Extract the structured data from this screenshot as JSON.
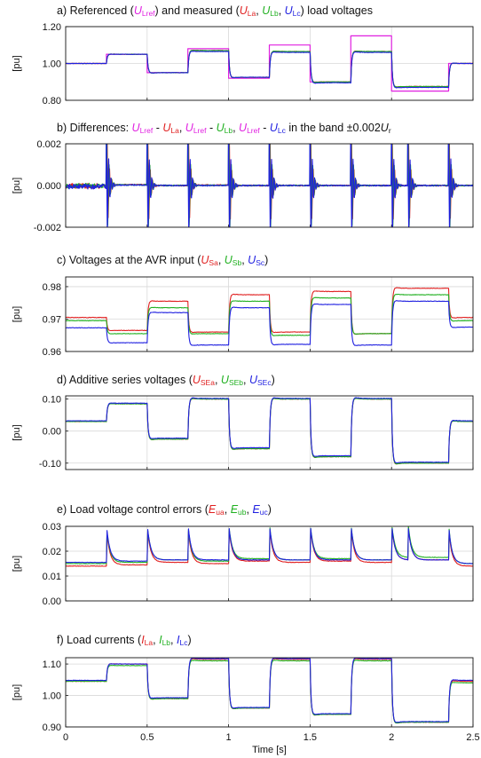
{
  "figure": {
    "x_axis_label": "Time [s]",
    "x_tick_labels": [
      "0",
      "0.5",
      "1",
      "1.5",
      "2",
      "2.5"
    ],
    "xlim": [
      0,
      2.5
    ],
    "step_times": [
      0.25,
      0.5,
      0.75,
      1.0,
      1.25,
      1.5,
      1.75,
      2.0,
      2.1,
      2.35
    ]
  },
  "panels": [
    {
      "id": "a",
      "title_parts": [
        {
          "t": "a) Referenced ("
        },
        {
          "t": "U",
          "i": true,
          "c": "#e020e0"
        },
        {
          "t": "Lref",
          "sub": true,
          "c": "#e020e0"
        },
        {
          "t": ") and measured ("
        },
        {
          "t": "U",
          "i": true,
          "c": "#e02020"
        },
        {
          "t": "La",
          "sub": true,
          "c": "#e02020"
        },
        {
          "t": ", "
        },
        {
          "t": "U",
          "i": true,
          "c": "#20b020"
        },
        {
          "t": "Lb",
          "sub": true,
          "c": "#20b020"
        },
        {
          "t": ", "
        },
        {
          "t": "U",
          "i": true,
          "c": "#2020e0"
        },
        {
          "t": "Lc",
          "sub": true,
          "c": "#2020e0"
        },
        {
          "t": ") load voltages"
        }
      ],
      "ylabel": "[pu]",
      "ylim": [
        0.8,
        1.2
      ],
      "yticks": [
        0.8,
        1.0,
        1.2
      ],
      "ytick_labels": [
        "0.80",
        "1.00",
        "1.20"
      ]
    },
    {
      "id": "b",
      "title_parts": [
        {
          "t": "b) Differences: "
        },
        {
          "t": "U",
          "i": true,
          "c": "#e020e0"
        },
        {
          "t": "Lref",
          "sub": true,
          "c": "#e020e0"
        },
        {
          "t": " - "
        },
        {
          "t": "U",
          "i": true,
          "c": "#e02020"
        },
        {
          "t": "La",
          "sub": true,
          "c": "#e02020"
        },
        {
          "t": ", "
        },
        {
          "t": "U",
          "i": true,
          "c": "#e020e0"
        },
        {
          "t": "Lref",
          "sub": true,
          "c": "#e020e0"
        },
        {
          "t": " - "
        },
        {
          "t": "U",
          "i": true,
          "c": "#20b020"
        },
        {
          "t": "Lb",
          "sub": true,
          "c": "#20b020"
        },
        {
          "t": ", "
        },
        {
          "t": "U",
          "i": true,
          "c": "#e020e0"
        },
        {
          "t": "Lref",
          "sub": true,
          "c": "#e020e0"
        },
        {
          "t": " - "
        },
        {
          "t": "U",
          "i": true,
          "c": "#2020e0"
        },
        {
          "t": "Lc",
          "sub": true,
          "c": "#2020e0"
        },
        {
          "t": " in the band ±0.002"
        },
        {
          "t": "U",
          "i": true
        },
        {
          "t": "r",
          "sub": true
        }
      ],
      "ylabel": "[pu]",
      "ylim": [
        -0.002,
        0.002
      ],
      "yticks": [
        -0.002,
        0.0,
        0.002
      ],
      "ytick_labels": [
        "-0.002",
        "0.000",
        "0.002"
      ]
    },
    {
      "id": "c",
      "title_parts": [
        {
          "t": "c) Voltages at the AVR input ("
        },
        {
          "t": "U",
          "i": true,
          "c": "#e02020"
        },
        {
          "t": "Sa",
          "sub": true,
          "c": "#e02020"
        },
        {
          "t": ", "
        },
        {
          "t": "U",
          "i": true,
          "c": "#20b020"
        },
        {
          "t": "Sb",
          "sub": true,
          "c": "#20b020"
        },
        {
          "t": ", "
        },
        {
          "t": "U",
          "i": true,
          "c": "#2020e0"
        },
        {
          "t": "Sc",
          "sub": true,
          "c": "#2020e0"
        },
        {
          "t": ")"
        }
      ],
      "ylabel": "[pu]",
      "ylim": [
        0.96,
        0.983
      ],
      "yticks": [
        0.96,
        0.97,
        0.98
      ],
      "ytick_labels": [
        "0.96",
        "0.97",
        "0.98"
      ]
    },
    {
      "id": "d",
      "title_parts": [
        {
          "t": "d) Additive series voltages ("
        },
        {
          "t": "U",
          "i": true,
          "c": "#e02020"
        },
        {
          "t": "SEa",
          "sub": true,
          "c": "#e02020"
        },
        {
          "t": ", "
        },
        {
          "t": "U",
          "i": true,
          "c": "#20b020"
        },
        {
          "t": "SEb",
          "sub": true,
          "c": "#20b020"
        },
        {
          "t": ", "
        },
        {
          "t": "U",
          "i": true,
          "c": "#2020e0"
        },
        {
          "t": "SEc",
          "sub": true,
          "c": "#2020e0"
        },
        {
          "t": ")"
        }
      ],
      "ylabel": "[pu]",
      "ylim": [
        -0.12,
        0.11
      ],
      "yticks": [
        -0.1,
        0.0,
        0.1
      ],
      "ytick_labels": [
        "-0.10",
        "0.00",
        "0.10"
      ]
    },
    {
      "id": "e",
      "title_parts": [
        {
          "t": "e) Load voltage control errors ("
        },
        {
          "t": "E",
          "i": true,
          "c": "#e02020"
        },
        {
          "t": "ua",
          "sub": true,
          "c": "#e02020"
        },
        {
          "t": ", "
        },
        {
          "t": "E",
          "i": true,
          "c": "#20b020"
        },
        {
          "t": "ub",
          "sub": true,
          "c": "#20b020"
        },
        {
          "t": ", "
        },
        {
          "t": "E",
          "i": true,
          "c": "#2020e0"
        },
        {
          "t": "uc",
          "sub": true,
          "c": "#2020e0"
        },
        {
          "t": ")"
        }
      ],
      "ylabel": "[pu]",
      "ylim": [
        0.0,
        0.03
      ],
      "yticks": [
        0.0,
        0.01,
        0.02,
        0.03
      ],
      "ytick_labels": [
        "0.00",
        "0.01",
        "0.02",
        "0.03"
      ]
    },
    {
      "id": "f",
      "title_parts": [
        {
          "t": "f) Load currents ("
        },
        {
          "t": "I",
          "i": true,
          "c": "#e02020"
        },
        {
          "t": "La",
          "sub": true,
          "c": "#e02020"
        },
        {
          "t": ", "
        },
        {
          "t": "I",
          "i": true,
          "c": "#20b020"
        },
        {
          "t": "Lb",
          "sub": true,
          "c": "#20b020"
        },
        {
          "t": ", "
        },
        {
          "t": "I",
          "i": true,
          "c": "#2020e0"
        },
        {
          "t": "Lc",
          "sub": true,
          "c": "#2020e0"
        },
        {
          "t": ")"
        }
      ],
      "ylabel": "[pu]",
      "ylim": [
        0.9,
        1.12
      ],
      "yticks": [
        0.9,
        1.0,
        1.1
      ],
      "ytick_labels": [
        "0.90",
        "1.00",
        "1.10"
      ]
    }
  ],
  "chart_data": [
    {
      "type": "line",
      "panel": "a",
      "x_breakpoints": [
        0,
        0.25,
        0.5,
        0.75,
        1.0,
        1.25,
        1.5,
        1.75,
        2.0,
        2.1,
        2.35,
        2.5
      ],
      "series": [
        {
          "color": "#e020e0",
          "style": "step",
          "levels": [
            1.0,
            1.05,
            0.95,
            1.08,
            0.92,
            1.1,
            0.9,
            1.15,
            0.85,
            0.85,
            1.0
          ]
        },
        {
          "color": "#e02020",
          "style": "tracking",
          "levels": [
            1.0,
            1.05,
            0.95,
            1.07,
            0.925,
            1.065,
            0.9,
            1.065,
            0.875,
            0.875,
            1.0
          ]
        },
        {
          "color": "#20b020",
          "style": "tracking",
          "levels": [
            1.0,
            1.05,
            0.95,
            1.07,
            0.925,
            1.065,
            0.9,
            1.065,
            0.875,
            0.875,
            1.0
          ]
        },
        {
          "color": "#2020e0",
          "style": "tracking",
          "levels": [
            1.0,
            1.05,
            0.95,
            1.065,
            0.925,
            1.06,
            0.895,
            1.06,
            0.87,
            0.87,
            1.0
          ]
        }
      ]
    },
    {
      "type": "line",
      "panel": "b",
      "band": 0.002,
      "x_breakpoints": [
        0,
        0.25,
        0.5,
        0.75,
        1.0,
        1.25,
        1.5,
        1.75,
        2.0,
        2.1,
        2.35,
        2.5
      ],
      "series": [
        {
          "color": "#e02020",
          "levels": [
            -2e-05,
            4e-05,
            0.0,
            2e-05,
            0.0,
            0.0,
            0.0,
            0.0,
            0.0,
            0.0,
            0.0
          ]
        },
        {
          "color": "#20b020",
          "levels": [
            -1e-05,
            3e-05,
            0.0,
            1e-05,
            0.0,
            0.0,
            0.0,
            0.0,
            0.0,
            0.0,
            0.0
          ]
        },
        {
          "color": "#2020e0",
          "levels": [
            -5e-05,
            2e-05,
            0.0,
            0.0,
            0.0,
            0.0,
            0.0,
            0.0,
            0.0,
            0.0,
            0.0
          ]
        }
      ]
    },
    {
      "type": "line",
      "panel": "c",
      "x_breakpoints": [
        0,
        0.25,
        0.5,
        0.75,
        1.0,
        1.25,
        1.5,
        1.75,
        2.0,
        2.1,
        2.35,
        2.5
      ],
      "series": [
        {
          "color": "#e02020",
          "levels": [
            0.9705,
            0.9665,
            0.9755,
            0.966,
            0.9775,
            0.966,
            0.9785,
            0.9655,
            0.9795,
            0.9795,
            0.9705
          ]
        },
        {
          "color": "#20b020",
          "levels": [
            0.9695,
            0.9655,
            0.9735,
            0.9655,
            0.9755,
            0.965,
            0.9765,
            0.9655,
            0.9775,
            0.9775,
            0.9695
          ]
        },
        {
          "color": "#2020e0",
          "levels": [
            0.9673,
            0.9627,
            0.972,
            0.962,
            0.9735,
            0.9622,
            0.9745,
            0.962,
            0.9755,
            0.9755,
            0.9675
          ]
        }
      ]
    },
    {
      "type": "line",
      "panel": "d",
      "x_breakpoints": [
        0,
        0.25,
        0.5,
        0.75,
        1.0,
        1.25,
        1.5,
        1.75,
        2.0,
        2.1,
        2.35,
        2.5
      ],
      "series": [
        {
          "color": "#e02020",
          "levels": [
            0.03,
            0.085,
            -0.025,
            0.1,
            -0.055,
            0.1,
            -0.08,
            0.1,
            -0.1,
            -0.1,
            0.03
          ]
        },
        {
          "color": "#20b020",
          "levels": [
            0.03,
            0.085,
            -0.025,
            0.1,
            -0.055,
            0.1,
            -0.08,
            0.1,
            -0.1,
            -0.1,
            0.03
          ]
        },
        {
          "color": "#2020e0",
          "levels": [
            0.032,
            0.087,
            -0.022,
            0.102,
            -0.052,
            0.102,
            -0.077,
            0.102,
            -0.097,
            -0.097,
            0.032
          ]
        }
      ]
    },
    {
      "type": "line",
      "panel": "e",
      "x_breakpoints": [
        0,
        0.25,
        0.5,
        0.75,
        1.0,
        1.25,
        1.5,
        1.75,
        2.0,
        2.1,
        2.35,
        2.5
      ],
      "series": [
        {
          "color": "#e02020",
          "levels": [
            0.014,
            0.0145,
            0.0155,
            0.015,
            0.016,
            0.0155,
            0.016,
            0.0155,
            0.0165,
            0.0165,
            0.014
          ]
        },
        {
          "color": "#20b020",
          "levels": [
            0.015,
            0.0155,
            0.0165,
            0.016,
            0.017,
            0.0165,
            0.017,
            0.0165,
            0.0175,
            0.0175,
            0.015
          ]
        },
        {
          "color": "#2020e0",
          "levels": [
            0.0155,
            0.016,
            0.0165,
            0.0165,
            0.0165,
            0.0165,
            0.0165,
            0.0165,
            0.0165,
            0.0165,
            0.015
          ]
        }
      ]
    },
    {
      "type": "line",
      "panel": "f",
      "x_breakpoints": [
        0,
        0.25,
        0.5,
        0.75,
        1.0,
        1.25,
        1.5,
        1.75,
        2.0,
        2.1,
        2.35,
        2.5
      ],
      "series": [
        {
          "color": "#e02020",
          "levels": [
            1.045,
            1.1,
            0.99,
            1.115,
            0.96,
            1.115,
            0.94,
            1.115,
            0.915,
            0.915,
            1.045
          ]
        },
        {
          "color": "#20b020",
          "levels": [
            1.045,
            1.095,
            0.99,
            1.11,
            0.96,
            1.11,
            0.94,
            1.11,
            0.915,
            0.915,
            1.04
          ]
        },
        {
          "color": "#2020e0",
          "levels": [
            1.048,
            1.1,
            0.993,
            1.117,
            0.962,
            1.117,
            0.942,
            1.117,
            0.917,
            0.917,
            1.048
          ]
        }
      ]
    }
  ]
}
